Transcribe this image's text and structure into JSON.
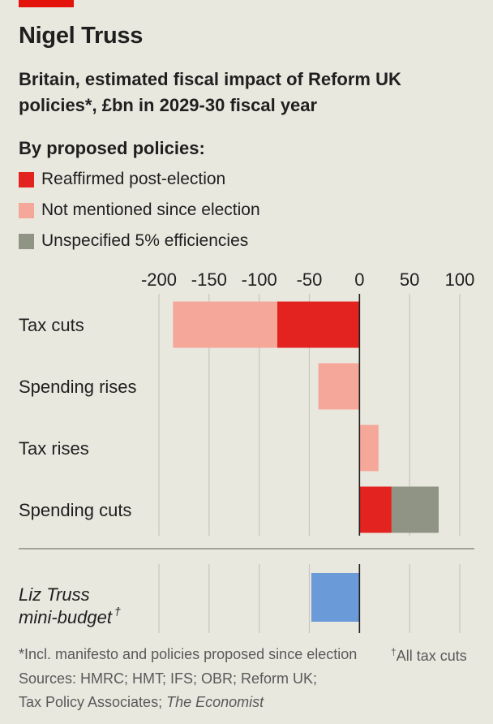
{
  "header": {
    "title": "Nigel Truss",
    "subtitle": "Britain, estimated fiscal impact of Reform UK policies*, £bn in 2029-30 fiscal year"
  },
  "legend": {
    "title": "By proposed policies:",
    "items": [
      {
        "label": "Reaffirmed post-election",
        "color": "#e3231f"
      },
      {
        "label": "Not mentioned since election",
        "color": "#f5a899"
      },
      {
        "label": "Unspecified 5% efficiencies",
        "color": "#8f9485"
      }
    ]
  },
  "chart_data": {
    "type": "bar",
    "orientation": "horizontal",
    "stacked": true,
    "xlim": [
      -200,
      100
    ],
    "x_ticks": [
      "-200",
      "-150",
      "-100",
      "-50",
      "0",
      "50",
      "100"
    ],
    "categories": [
      "Tax cuts",
      "Spending rises",
      "Tax rises",
      "Spending cuts"
    ],
    "series": [
      {
        "name": "Reaffirmed post-election",
        "color": "#e3231f",
        "values": [
          -82,
          0,
          0,
          32
        ]
      },
      {
        "name": "Not mentioned since election",
        "color": "#f5a899",
        "values": [
          -104,
          -41,
          19,
          0
        ]
      },
      {
        "name": "Unspecified 5% efficiencies",
        "color": "#8f9485",
        "values": [
          0,
          0,
          0,
          47
        ]
      }
    ],
    "comparison": {
      "label_line1": "Liz Truss",
      "label_line2": "mini-budget",
      "label_mark": "†",
      "value": -48,
      "color": "#6a9bd8"
    },
    "grid": true
  },
  "footer": {
    "note": "*Incl. manifesto and policies proposed since election",
    "note2_mark": "†",
    "note2": "All tax cuts",
    "sources": "Sources: HMRC; HMT; IFS; OBR; Reform UK;",
    "sources2_plain": "Tax Policy Associates; ",
    "sources2_italic": "The Economist"
  }
}
